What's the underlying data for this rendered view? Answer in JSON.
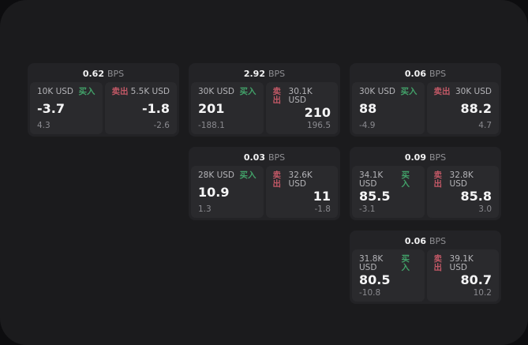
{
  "page": {
    "background_outer": "#0d0d0f",
    "background_screen": "#1b1b1d",
    "card_color": "#232326",
    "panel_color": "#2a2a2d",
    "buy_color": "#42a169",
    "sell_color": "#c25866"
  },
  "labels": {
    "bps_unit": "BPS",
    "buy": "买入",
    "sell": "卖出"
  },
  "cards": [
    {
      "row": 1,
      "col": 1,
      "bps": "0.62",
      "buy": {
        "size": "10K USD",
        "price": "-3.7",
        "delta": "4.3"
      },
      "sell": {
        "size": "5.5K USD",
        "price": "-1.8",
        "delta": "-2.6"
      }
    },
    {
      "row": 1,
      "col": 2,
      "bps": "2.92",
      "buy": {
        "size": "30K USD",
        "price": "201",
        "delta": "-188.1"
      },
      "sell": {
        "size": "30.1K USD",
        "price": "210",
        "delta": "196.5"
      }
    },
    {
      "row": 1,
      "col": 3,
      "bps": "0.06",
      "buy": {
        "size": "30K USD",
        "price": "88",
        "delta": "-4.9"
      },
      "sell": {
        "size": "30K USD",
        "price": "88.2",
        "delta": "4.7"
      }
    },
    {
      "row": 2,
      "col": 2,
      "bps": "0.03",
      "buy": {
        "size": "28K USD",
        "price": "10.9",
        "delta": "1.3"
      },
      "sell": {
        "size": "32.6K USD",
        "price": "11",
        "delta": "-1.8"
      }
    },
    {
      "row": 2,
      "col": 3,
      "bps": "0.09",
      "buy": {
        "size": "34.1K USD",
        "price": "85.5",
        "delta": "-3.1"
      },
      "sell": {
        "size": "32.8K USD",
        "price": "85.8",
        "delta": "3.0"
      }
    },
    {
      "row": 3,
      "col": 3,
      "bps": "0.06",
      "buy": {
        "size": "31.8K USD",
        "price": "80.5",
        "delta": "-10.8"
      },
      "sell": {
        "size": "39.1K USD",
        "price": "80.7",
        "delta": "10.2"
      }
    }
  ]
}
